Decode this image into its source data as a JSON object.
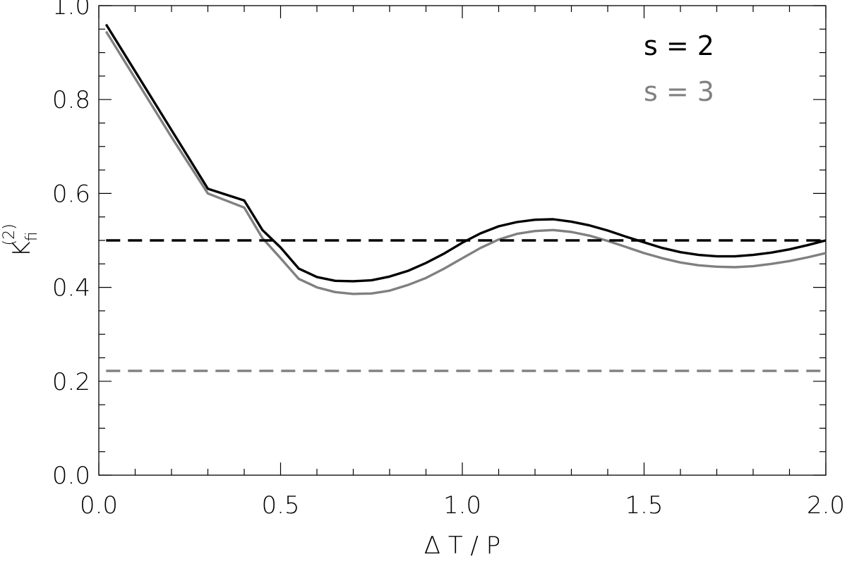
{
  "chart_data": {
    "type": "line",
    "title": "",
    "xlabel": "Δ T / P",
    "ylabel": {
      "base": "K",
      "subscript": "fi",
      "superscript": "(2)"
    },
    "xlim": [
      0.0,
      2.0
    ],
    "ylim": [
      0.0,
      1.0
    ],
    "x_ticks": [
      "0.0",
      "0.5",
      "1.0",
      "1.5",
      "2.0"
    ],
    "y_ticks": [
      "0.0",
      "0.2",
      "0.4",
      "0.6",
      "0.8",
      "1.0"
    ],
    "legend_placement": "top-right",
    "grid": false,
    "series": [
      {
        "name": "s = 2",
        "color": "#000000",
        "style": "solid",
        "points": [
          [
            0.02,
            0.96
          ],
          [
            0.1,
            0.86
          ],
          [
            0.2,
            0.735
          ],
          [
            0.3,
            0.61
          ],
          [
            0.4,
            0.585
          ],
          [
            0.45,
            0.522
          ],
          [
            0.5,
            0.485
          ],
          [
            0.55,
            0.44
          ],
          [
            0.6,
            0.422
          ],
          [
            0.65,
            0.414
          ],
          [
            0.7,
            0.413
          ],
          [
            0.75,
            0.415
          ],
          [
            0.8,
            0.423
          ],
          [
            0.85,
            0.435
          ],
          [
            0.9,
            0.452
          ],
          [
            0.95,
            0.472
          ],
          [
            1.0,
            0.495
          ],
          [
            1.05,
            0.515
          ],
          [
            1.1,
            0.53
          ],
          [
            1.15,
            0.539
          ],
          [
            1.2,
            0.544
          ],
          [
            1.25,
            0.545
          ],
          [
            1.3,
            0.54
          ],
          [
            1.35,
            0.532
          ],
          [
            1.4,
            0.521
          ],
          [
            1.45,
            0.508
          ],
          [
            1.5,
            0.496
          ],
          [
            1.55,
            0.484
          ],
          [
            1.6,
            0.475
          ],
          [
            1.65,
            0.469
          ],
          [
            1.7,
            0.466
          ],
          [
            1.75,
            0.466
          ],
          [
            1.8,
            0.469
          ],
          [
            1.85,
            0.474
          ],
          [
            1.9,
            0.481
          ],
          [
            1.95,
            0.49
          ],
          [
            2.0,
            0.5
          ]
        ]
      },
      {
        "name": "s = 3",
        "color": "#808080",
        "style": "solid",
        "points": [
          [
            0.02,
            0.945
          ],
          [
            0.1,
            0.845
          ],
          [
            0.2,
            0.72
          ],
          [
            0.3,
            0.6
          ],
          [
            0.4,
            0.57
          ],
          [
            0.45,
            0.505
          ],
          [
            0.5,
            0.462
          ],
          [
            0.55,
            0.418
          ],
          [
            0.6,
            0.4
          ],
          [
            0.65,
            0.39
          ],
          [
            0.7,
            0.386
          ],
          [
            0.75,
            0.387
          ],
          [
            0.8,
            0.393
          ],
          [
            0.85,
            0.405
          ],
          [
            0.9,
            0.42
          ],
          [
            0.95,
            0.44
          ],
          [
            1.0,
            0.462
          ],
          [
            1.05,
            0.484
          ],
          [
            1.1,
            0.502
          ],
          [
            1.15,
            0.514
          ],
          [
            1.2,
            0.52
          ],
          [
            1.25,
            0.522
          ],
          [
            1.3,
            0.518
          ],
          [
            1.35,
            0.51
          ],
          [
            1.4,
            0.499
          ],
          [
            1.45,
            0.486
          ],
          [
            1.5,
            0.473
          ],
          [
            1.55,
            0.462
          ],
          [
            1.6,
            0.453
          ],
          [
            1.65,
            0.447
          ],
          [
            1.7,
            0.444
          ],
          [
            1.75,
            0.443
          ],
          [
            1.8,
            0.445
          ],
          [
            1.85,
            0.45
          ],
          [
            1.9,
            0.456
          ],
          [
            1.95,
            0.464
          ],
          [
            2.0,
            0.473
          ]
        ]
      },
      {
        "name": "",
        "color": "#000000",
        "style": "dashed",
        "points": [
          [
            0.02,
            0.5
          ],
          [
            2.0,
            0.5
          ]
        ]
      },
      {
        "name": "",
        "color": "#808080",
        "style": "dashed",
        "points": [
          [
            0.02,
            0.222
          ],
          [
            2.0,
            0.222
          ]
        ]
      }
    ]
  }
}
